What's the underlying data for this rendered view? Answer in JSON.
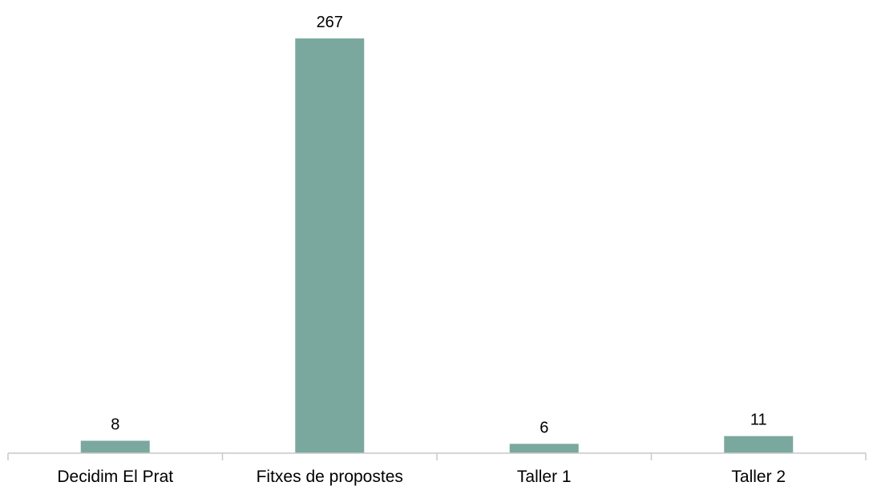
{
  "chart_data": {
    "type": "bar",
    "categories": [
      "Decidim El Prat",
      "Fitxes de propostes",
      "Taller 1",
      "Taller 2"
    ],
    "values": [
      8,
      267,
      6,
      11
    ],
    "data_labels": [
      "8",
      "267",
      "6",
      "11"
    ],
    "title": "",
    "xlabel": "",
    "ylabel": "",
    "ylim": [
      0,
      267
    ],
    "grid": false,
    "legend": "none",
    "bar_color": "#7ba89e",
    "axis_color": "#c8c8c8",
    "text_color": "#000000"
  }
}
